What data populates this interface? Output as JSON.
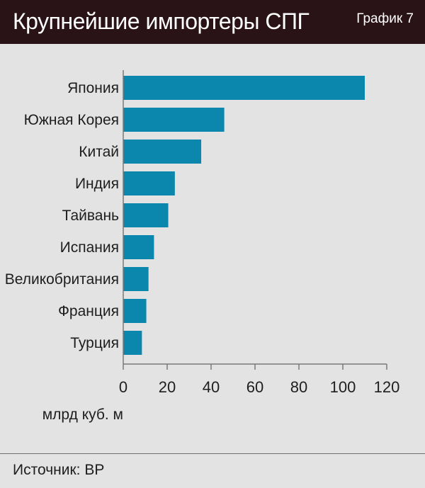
{
  "header": {
    "title": "Крупнейшие импортеры СПГ",
    "graph_label": "График 7"
  },
  "footer": {
    "source": "Источник: BP"
  },
  "chart_data": {
    "type": "bar",
    "orientation": "horizontal",
    "categories": [
      "Япония",
      "Южная Корея",
      "Китай",
      "Индия",
      "Тайвань",
      "Испания",
      "Великобритания",
      "Франция",
      "Турция"
    ],
    "values": [
      110,
      46,
      35.5,
      23.5,
      20.5,
      14,
      11.5,
      10.5,
      8.5
    ],
    "xlabel": "млрд куб. м",
    "xlim": [
      0,
      120
    ],
    "xticks": [
      0,
      20,
      40,
      60,
      80,
      100,
      120
    ],
    "grid": false,
    "bar_color": "#0b86ad"
  }
}
